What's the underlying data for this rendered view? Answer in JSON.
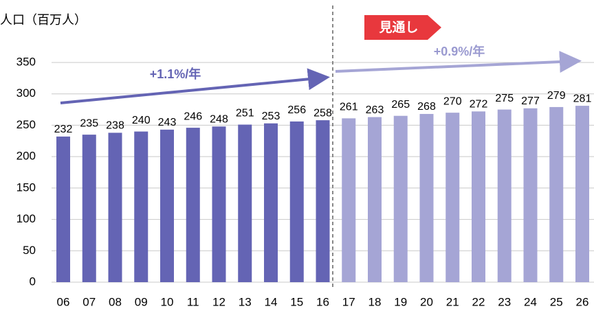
{
  "chart_data": {
    "type": "bar",
    "y_label": "人口（百万人）",
    "categories": [
      "06",
      "07",
      "08",
      "09",
      "10",
      "11",
      "12",
      "13",
      "14",
      "15",
      "16",
      "17",
      "18",
      "19",
      "20",
      "21",
      "22",
      "23",
      "24",
      "25",
      "26"
    ],
    "values": [
      232,
      235,
      238,
      240,
      243,
      246,
      248,
      251,
      253,
      256,
      258,
      261,
      263,
      265,
      268,
      270,
      272,
      275,
      277,
      279,
      281
    ],
    "colors": [
      "#6464b4",
      "#6464b4",
      "#6464b4",
      "#6464b4",
      "#6464b4",
      "#6464b4",
      "#6464b4",
      "#6464b4",
      "#6464b4",
      "#6464b4",
      "#6464b4",
      "#a5a5d5",
      "#a5a5d5",
      "#a5a5d5",
      "#a5a5d5",
      "#a5a5d5",
      "#a5a5d5",
      "#a5a5d5",
      "#a5a5d5",
      "#a5a5d5",
      "#a5a5d5"
    ],
    "ylim": [
      0,
      350
    ],
    "yticks": [
      0,
      50,
      100,
      150,
      200,
      250,
      300,
      350
    ],
    "grid": true,
    "annotations": {
      "forecast": "見通し",
      "growth_actual": "+1.1%/年",
      "growth_forecast": "+0.9%/年"
    }
  }
}
